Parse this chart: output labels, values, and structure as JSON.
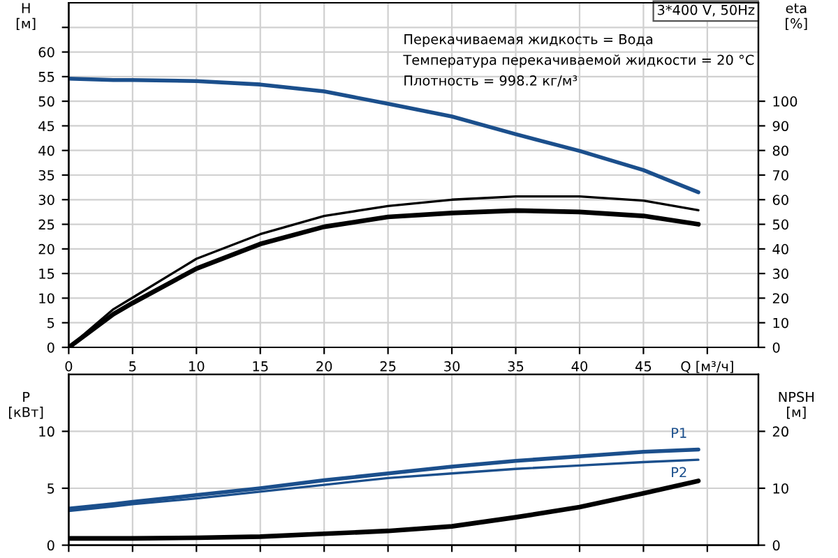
{
  "chart_data": [
    {
      "type": "line",
      "title": "3*400 V, 50Hz",
      "ylabel": "H\n[м]",
      "y2label": "eta\n[%]",
      "annotations": [
        "Перекачиваемая жидкость = Вода",
        "Температура перекачиваемой жидкости = 20 °C",
        "Плотность = 998.2 кг/м³"
      ],
      "x": [
        0,
        3.5,
        5,
        10,
        15,
        20,
        25,
        30,
        35,
        40,
        45,
        49.3
      ],
      "series": [
        {
          "color": "#1b4f8c",
          "values": [
            54.6,
            54.3,
            54.3,
            54.1,
            53.4,
            52.0,
            49.5,
            46.9,
            43.3,
            39.9,
            36.0,
            31.5
          ]
        },
        {
          "color": "#000000",
          "axis": "y2",
          "values": [
            0,
            15.5,
            20.2,
            36,
            46,
            53.4,
            57.4,
            60,
            61.3,
            61.3,
            59.6,
            55.7
          ]
        },
        {
          "color": "#000000",
          "axis": "y2",
          "values": [
            0,
            13.5,
            18,
            32,
            42,
            49,
            53,
            54.6,
            55.6,
            55,
            53.4,
            50
          ]
        }
      ],
      "xlim": [
        0,
        54
      ],
      "xticks": [
        0,
        5,
        10,
        15,
        20,
        25,
        30,
        35,
        40,
        45,
        {
          "value": 50,
          "label": "Q [м³/ч]"
        }
      ],
      "ylim": [
        0,
        70
      ],
      "yticks": [
        0,
        5,
        10,
        15,
        20,
        25,
        30,
        35,
        40,
        45,
        50,
        55,
        60,
        {
          "value": 65,
          "label": null
        }
      ],
      "y2lim": [
        0,
        140
      ],
      "y2ticks": [
        0,
        10,
        20,
        30,
        40,
        50,
        60,
        70,
        80,
        90,
        100
      ],
      "grid": true
    },
    {
      "type": "line",
      "ylabel": "P\n[кВт]",
      "y2label": "NPSH\n[м]",
      "x": [
        0,
        3.5,
        5,
        10,
        15,
        20,
        25,
        30,
        35,
        40,
        45,
        49.3
      ],
      "series": [
        {
          "name": "P1",
          "color": "#1b4f8c",
          "values": [
            3.2,
            3.6,
            3.8,
            4.4,
            5.0,
            5.7,
            6.3,
            6.9,
            7.4,
            7.8,
            8.2,
            8.4
          ]
        },
        {
          "name": "P2",
          "color": "#1b4f8c",
          "values": [
            3.0,
            3.4,
            3.6,
            4.1,
            4.7,
            5.3,
            5.9,
            6.3,
            6.7,
            7.0,
            7.3,
            7.5
          ]
        },
        {
          "color": "#000000",
          "axis": "y2",
          "values": [
            1.2,
            1.2,
            1.2,
            1.3,
            1.5,
            2.0,
            2.5,
            3.3,
            4.9,
            6.7,
            9.1,
            11.3
          ]
        }
      ],
      "xlim": [
        0,
        54
      ],
      "xticks": [
        0,
        5,
        10,
        15,
        20,
        25,
        30,
        35,
        40,
        45,
        50
      ],
      "ylim": [
        0,
        15
      ],
      "yticks": [
        0,
        5,
        10
      ],
      "y2lim": [
        0,
        30
      ],
      "y2ticks": [
        0,
        10,
        20
      ],
      "tick_labels": "y",
      "grid": true
    }
  ]
}
